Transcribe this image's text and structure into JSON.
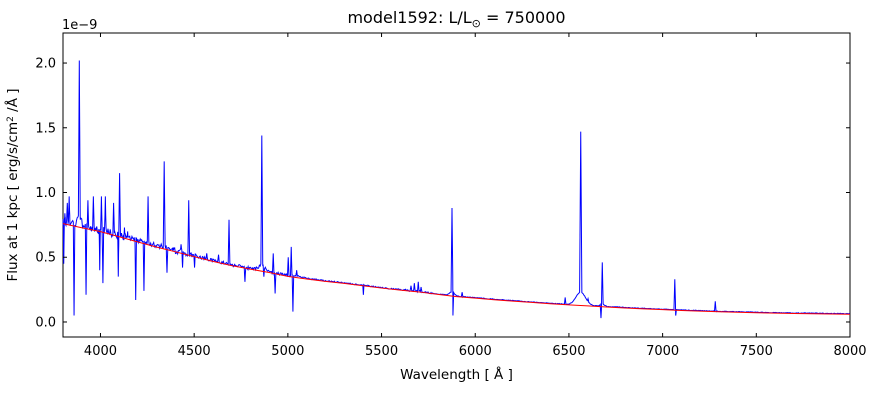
{
  "figure": {
    "title": {
      "prefix": "model1592: L/L",
      "sub": "⊙",
      "suffix": " = 750000"
    },
    "xlabel": "Wavelength [ Å ]",
    "ylabel": {
      "prefix": "Flux at 1 kpc [ erg/s/cm",
      "sup": "2",
      "suffix": " /Å ]"
    },
    "offset_text": "1e−9",
    "background_color": "#ffffff",
    "axes_color": "#000000",
    "text_color": "#000000"
  },
  "chart_data": {
    "type": "line",
    "title": "model1592: L/L⊙ = 750000",
    "xlabel": "Wavelength [ Å ]",
    "ylabel": "Flux at 1 kpc [ erg/s/cm² /Å ]",
    "y_scale_factor": "1e-9",
    "xlim": [
      3800,
      8000
    ],
    "ylim_1e9": [
      -0.116,
      2.232
    ],
    "xticks": [
      4000,
      4500,
      5000,
      5500,
      6000,
      6500,
      7000,
      7500,
      8000
    ],
    "yticks": [
      0.0,
      0.5,
      1.0,
      1.5,
      2.0
    ],
    "grid": false,
    "legend": "none",
    "noise_seed": 987654321,
    "series": [
      {
        "name": "observed spectrum",
        "color": "#0000ff"
      },
      {
        "name": "continuum fit",
        "color": "#ff0000",
        "points": [
          [
            3800,
            0.76
          ],
          [
            3900,
            0.728
          ],
          [
            4000,
            0.698
          ],
          [
            4100,
            0.658
          ],
          [
            4200,
            0.618
          ],
          [
            4300,
            0.578
          ],
          [
            4400,
            0.542
          ],
          [
            4500,
            0.505
          ],
          [
            4600,
            0.468
          ],
          [
            4700,
            0.435
          ],
          [
            4800,
            0.408
          ],
          [
            4900,
            0.382
          ],
          [
            5000,
            0.352
          ],
          [
            5100,
            0.332
          ],
          [
            5200,
            0.314
          ],
          [
            5300,
            0.298
          ],
          [
            5400,
            0.28
          ],
          [
            5500,
            0.262
          ],
          [
            5600,
            0.246
          ],
          [
            5700,
            0.232
          ],
          [
            5800,
            0.213
          ],
          [
            5900,
            0.196
          ],
          [
            6000,
            0.184
          ],
          [
            6100,
            0.172
          ],
          [
            6200,
            0.161
          ],
          [
            6300,
            0.151
          ],
          [
            6400,
            0.141
          ],
          [
            6500,
            0.132
          ],
          [
            6600,
            0.124
          ],
          [
            6700,
            0.116
          ],
          [
            6800,
            0.108
          ],
          [
            6900,
            0.101
          ],
          [
            7000,
            0.095
          ],
          [
            7100,
            0.089
          ],
          [
            7200,
            0.084
          ],
          [
            7300,
            0.079
          ],
          [
            7400,
            0.075
          ],
          [
            7500,
            0.071
          ],
          [
            7600,
            0.068
          ],
          [
            7700,
            0.066
          ],
          [
            7800,
            0.064
          ],
          [
            7900,
            0.062
          ],
          [
            8000,
            0.06
          ]
        ]
      }
    ],
    "emission_lines_format": [
      "wavelength_A",
      "peak_flux_1e-9",
      "halfwidth_A"
    ],
    "emission_lines": [
      [
        3810,
        0.84,
        3
      ],
      [
        3823,
        0.92,
        4
      ],
      [
        3833,
        0.97,
        4
      ],
      [
        3887,
        2.02,
        5
      ],
      [
        3933,
        0.94,
        4
      ],
      [
        3962,
        0.97,
        4
      ],
      [
        4005,
        0.97,
        4
      ],
      [
        4026,
        0.97,
        4
      ],
      [
        4070,
        0.92,
        4
      ],
      [
        4102,
        1.15,
        4.5
      ],
      [
        4128,
        0.73,
        3
      ],
      [
        4145,
        0.7,
        3
      ],
      [
        4254,
        0.97,
        4
      ],
      [
        4340,
        1.24,
        5
      ],
      [
        4388,
        0.56,
        4
      ],
      [
        4430,
        0.6,
        4
      ],
      [
        4471,
        0.94,
        4.5
      ],
      [
        4567,
        0.53,
        4
      ],
      [
        4630,
        0.52,
        4
      ],
      [
        4686,
        0.79,
        4.5
      ],
      [
        4713,
        0.43,
        4
      ],
      [
        4861,
        1.44,
        5
      ],
      [
        4922,
        0.53,
        4
      ],
      [
        5002,
        0.5,
        4
      ],
      [
        5018,
        0.58,
        4
      ],
      [
        5047,
        0.4,
        4
      ],
      [
        5657,
        0.28,
        4
      ],
      [
        5675,
        0.3,
        4
      ],
      [
        5696,
        0.31,
        4
      ],
      [
        5711,
        0.27,
        4
      ],
      [
        5876,
        0.88,
        5
      ],
      [
        5930,
        0.23,
        4
      ],
      [
        6480,
        0.19,
        4
      ],
      [
        6563,
        1.47,
        6
      ],
      [
        6602,
        0.18,
        4
      ],
      [
        6678,
        0.46,
        4.5
      ],
      [
        7065,
        0.33,
        4.5
      ],
      [
        7281,
        0.16,
        4
      ]
    ],
    "absorption_dips_format": [
      "wavelength_A",
      "min_flux_1e-9",
      "halfwidth_A"
    ],
    "absorption_dips": [
      [
        3804,
        0.45,
        3
      ],
      [
        3859,
        0.05,
        4
      ],
      [
        3923,
        0.21,
        4
      ],
      [
        3996,
        0.4,
        3
      ],
      [
        4013,
        0.3,
        4
      ],
      [
        4095,
        0.35,
        3
      ],
      [
        4188,
        0.17,
        4
      ],
      [
        4232,
        0.24,
        4
      ],
      [
        4355,
        0.38,
        4
      ],
      [
        4438,
        0.42,
        3
      ],
      [
        4502,
        0.42,
        3
      ],
      [
        4771,
        0.31,
        4
      ],
      [
        4872,
        0.35,
        4
      ],
      [
        4932,
        0.22,
        4
      ],
      [
        5027,
        0.08,
        4
      ],
      [
        5403,
        0.21,
        3
      ],
      [
        5881,
        0.05,
        4
      ],
      [
        6671,
        0.03,
        4
      ],
      [
        7070,
        0.05,
        3.5
      ],
      [
        7287,
        0.08,
        3
      ]
    ],
    "broad_components_format": [
      "wavelength_A",
      "amplitude_1e-9",
      "sigma_A"
    ],
    "broad_components": [
      [
        3887,
        0.05,
        12
      ],
      [
        4861,
        0.04,
        15
      ],
      [
        5876,
        0.03,
        12
      ],
      [
        6563,
        0.1,
        25
      ],
      [
        6678,
        0.02,
        10
      ]
    ],
    "noise_regions_format": [
      "from_A",
      "to_A",
      "amplitude_1e-9"
    ],
    "noise_regions": [
      [
        3800,
        4150,
        0.03
      ],
      [
        4150,
        4520,
        0.02
      ],
      [
        4520,
        5060,
        0.012
      ],
      [
        5060,
        5620,
        0.005
      ],
      [
        5620,
        5800,
        0.007
      ],
      [
        5800,
        8001,
        0.0025
      ]
    ],
    "blue_offset_regions_format": [
      "from_A",
      "to_A",
      "offset_1e-9"
    ],
    "blue_offset_regions": [
      [
        3800,
        4400,
        0.013
      ],
      [
        4400,
        5100,
        0.007
      ],
      [
        5100,
        8001,
        0.004
      ]
    ]
  }
}
